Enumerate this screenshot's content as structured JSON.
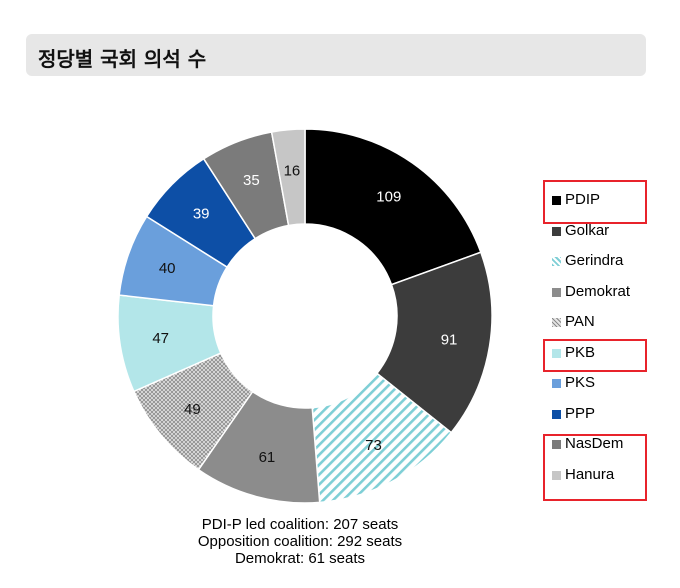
{
  "title": "정당별 국회 의석 수",
  "chart_data": {
    "type": "pie",
    "donut": true,
    "order": "clockwise from top",
    "series": [
      {
        "name": "PDIP",
        "value": 109,
        "color": "#000000",
        "pattern": "solid",
        "label_color": "#ffffff"
      },
      {
        "name": "Golkar",
        "value": 91,
        "color": "#3c3c3c",
        "pattern": "solid",
        "label_color": "#ffffff"
      },
      {
        "name": "Gerindra",
        "value": 73,
        "color": "#8fd3d8",
        "pattern": "diagonal-stripes",
        "label_color": "#111111"
      },
      {
        "name": "Demokrat",
        "value": 61,
        "color": "#8c8c8c",
        "pattern": "solid",
        "label_color": "#111111"
      },
      {
        "name": "PAN",
        "value": 49,
        "color": "#c8c8c8",
        "pattern": "crosshatch",
        "label_color": "#111111"
      },
      {
        "name": "PKB",
        "value": 47,
        "color": "#b3e6e9",
        "pattern": "solid",
        "label_color": "#111111"
      },
      {
        "name": "PKS",
        "value": 40,
        "color": "#6a9fdc",
        "pattern": "solid",
        "label_color": "#111111"
      },
      {
        "name": "PPP",
        "value": 39,
        "color": "#0d4fa6",
        "pattern": "solid",
        "label_color": "#ffffff"
      },
      {
        "name": "NasDem",
        "value": 35,
        "color": "#7b7b7b",
        "pattern": "solid",
        "label_color": "#ffffff"
      },
      {
        "name": "Hanura",
        "value": 16,
        "color": "#c6c6c6",
        "pattern": "solid",
        "label_color": "#111111"
      }
    ],
    "legend_position": "right",
    "highlighted_legend": [
      [
        "PDIP"
      ],
      [
        "PKB"
      ],
      [
        "NasDem",
        "Hanura"
      ]
    ],
    "highlight_color": "#e8232b"
  },
  "summary": {
    "line1": "PDI-P led coalition: 207 seats",
    "line2": "Opposition coalition: 292 seats",
    "line3": "Demokrat: 61 seats"
  }
}
